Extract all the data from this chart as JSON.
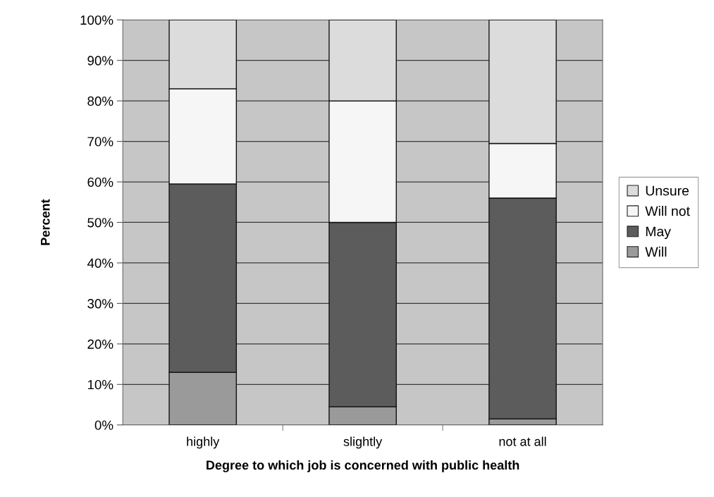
{
  "chart_data": {
    "type": "bar",
    "stacked": true,
    "xlabel": "Degree to which job is concerned with public health",
    "ylabel": "Percent",
    "categories": [
      "highly",
      "slightly",
      "not at all"
    ],
    "series": [
      {
        "name": "Will",
        "color": "#9a9a9a",
        "values": [
          13,
          4.5,
          1.5
        ]
      },
      {
        "name": "May",
        "color": "#5c5c5c",
        "values": [
          46.5,
          45.5,
          54.5
        ]
      },
      {
        "name": "Will not",
        "color": "#f6f6f6",
        "values": [
          23.5,
          30,
          13.5
        ]
      },
      {
        "name": "Unsure",
        "color": "#dcdcdc",
        "values": [
          17,
          20,
          30.5
        ]
      }
    ],
    "ylim": [
      0,
      100
    ],
    "yticks": [
      {
        "value": 0,
        "label": "0%"
      },
      {
        "value": 10,
        "label": "10%"
      },
      {
        "value": 20,
        "label": "20%"
      },
      {
        "value": 30,
        "label": "30%"
      },
      {
        "value": 40,
        "label": "40%"
      },
      {
        "value": 50,
        "label": "50%"
      },
      {
        "value": 60,
        "label": "60%"
      },
      {
        "value": 70,
        "label": "70%"
      },
      {
        "value": 80,
        "label": "80%"
      },
      {
        "value": 90,
        "label": "90%"
      },
      {
        "value": 100,
        "label": "100%"
      }
    ],
    "grid": "y",
    "legend": "right"
  }
}
